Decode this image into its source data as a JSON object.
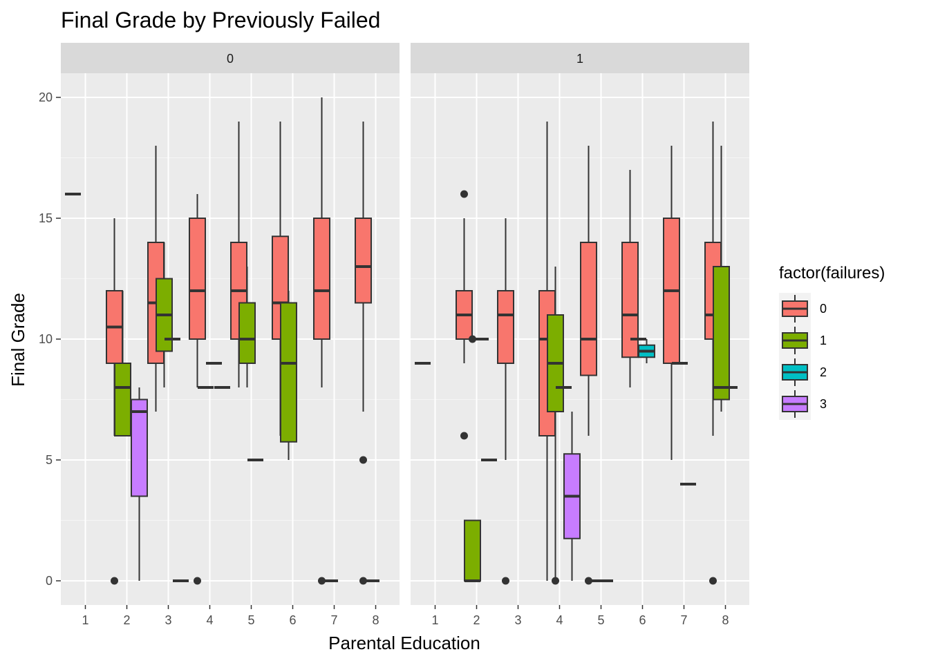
{
  "chart_data": {
    "type": "box",
    "title": "Final Grade by Previously Failed",
    "xlabel": "Parental Education",
    "ylabel": "Final Grade",
    "ylim": [
      -1,
      21
    ],
    "yticks": [
      0,
      5,
      10,
      15,
      20
    ],
    "categories": [
      "1",
      "2",
      "3",
      "4",
      "5",
      "6",
      "7",
      "8"
    ],
    "grid": true,
    "legend": {
      "title": "factor(failures)",
      "position": "right",
      "items": [
        {
          "label": "0",
          "color": "#F8766D"
        },
        {
          "label": "1",
          "color": "#7CAE00"
        },
        {
          "label": "2",
          "color": "#00BFC4"
        },
        {
          "label": "3",
          "color": "#C77CFF"
        }
      ]
    },
    "panels": [
      {
        "label": "0",
        "groups": [
          {
            "x": "1",
            "failures": "0",
            "q1": 16,
            "median": 16,
            "q3": 16,
            "lower": 16,
            "upper": 16,
            "outliers": []
          },
          {
            "x": "2",
            "failures": "0",
            "q1": 9,
            "median": 10.5,
            "q3": 12,
            "lower": 6,
            "upper": 15,
            "outliers": [
              0
            ]
          },
          {
            "x": "2",
            "failures": "1",
            "q1": 6,
            "median": 8,
            "q3": 9,
            "lower": 6,
            "upper": 12,
            "outliers": []
          },
          {
            "x": "2",
            "failures": "3",
            "q1": 3.5,
            "median": 7,
            "q3": 7.5,
            "lower": 0,
            "upper": 8,
            "outliers": []
          },
          {
            "x": "3",
            "failures": "0",
            "q1": 9,
            "median": 11.5,
            "q3": 14,
            "lower": 7,
            "upper": 18,
            "outliers": []
          },
          {
            "x": "3",
            "failures": "1",
            "q1": 9.5,
            "median": 11,
            "q3": 12.5,
            "lower": 8,
            "upper": 14,
            "outliers": []
          },
          {
            "x": "3",
            "failures": "2",
            "q1": 10,
            "median": 10,
            "q3": 10,
            "lower": 10,
            "upper": 10,
            "outliers": []
          },
          {
            "x": "3",
            "failures": "3",
            "q1": 0,
            "median": 0,
            "q3": 0,
            "lower": 0,
            "upper": 0,
            "outliers": []
          },
          {
            "x": "4",
            "failures": "0",
            "q1": 10,
            "median": 12,
            "q3": 15,
            "lower": 8,
            "upper": 16,
            "outliers": [
              0
            ]
          },
          {
            "x": "4",
            "failures": "1",
            "q1": 8,
            "median": 8,
            "q3": 8,
            "lower": 8,
            "upper": 8,
            "outliers": []
          },
          {
            "x": "4",
            "failures": "2",
            "q1": 9,
            "median": 9,
            "q3": 9,
            "lower": 9,
            "upper": 9,
            "outliers": []
          },
          {
            "x": "4",
            "failures": "3",
            "q1": 8,
            "median": 8,
            "q3": 8,
            "lower": 8,
            "upper": 8,
            "outliers": []
          },
          {
            "x": "5",
            "failures": "0",
            "q1": 10,
            "median": 12,
            "q3": 14,
            "lower": 8,
            "upper": 19,
            "outliers": []
          },
          {
            "x": "5",
            "failures": "1",
            "q1": 9,
            "median": 10,
            "q3": 11.5,
            "lower": 8,
            "upper": 13,
            "outliers": []
          },
          {
            "x": "5",
            "failures": "2",
            "q1": 5,
            "median": 5,
            "q3": 5,
            "lower": 5,
            "upper": 5,
            "outliers": []
          },
          {
            "x": "6",
            "failures": "0",
            "q1": 10,
            "median": 11.5,
            "q3": 14.25,
            "lower": 6,
            "upper": 19,
            "outliers": []
          },
          {
            "x": "6",
            "failures": "1",
            "q1": 5.75,
            "median": 9,
            "q3": 11.5,
            "lower": 5,
            "upper": 12,
            "outliers": []
          },
          {
            "x": "7",
            "failures": "0",
            "q1": 10,
            "median": 12,
            "q3": 15,
            "lower": 8,
            "upper": 20,
            "outliers": [
              0
            ]
          },
          {
            "x": "7",
            "failures": "1",
            "q1": 0,
            "median": 0,
            "q3": 0,
            "lower": 0,
            "upper": 0,
            "outliers": []
          },
          {
            "x": "8",
            "failures": "0",
            "q1": 11.5,
            "median": 13,
            "q3": 15,
            "lower": 7,
            "upper": 19,
            "outliers": [
              5,
              0
            ]
          },
          {
            "x": "8",
            "failures": "1",
            "q1": 0,
            "median": 0,
            "q3": 0,
            "lower": 0,
            "upper": 0,
            "outliers": []
          }
        ]
      },
      {
        "label": "1",
        "groups": [
          {
            "x": "1",
            "failures": "0",
            "q1": 9,
            "median": 9,
            "q3": 9,
            "lower": 9,
            "upper": 9,
            "outliers": []
          },
          {
            "x": "2",
            "failures": "0",
            "q1": 10,
            "median": 11,
            "q3": 12,
            "lower": 9,
            "upper": 15,
            "outliers": [
              16,
              6
            ]
          },
          {
            "x": "2",
            "failures": "1",
            "q1": 0,
            "median": 0,
            "q3": 2.5,
            "lower": 0,
            "upper": 2.5,
            "outliers": [
              10
            ]
          },
          {
            "x": "2",
            "failures": "2",
            "q1": 10,
            "median": 10,
            "q3": 10,
            "lower": 10,
            "upper": 10,
            "outliers": []
          },
          {
            "x": "2",
            "failures": "3",
            "q1": 5,
            "median": 5,
            "q3": 5,
            "lower": 5,
            "upper": 5,
            "outliers": []
          },
          {
            "x": "3",
            "failures": "0",
            "q1": 9,
            "median": 11,
            "q3": 12,
            "lower": 5,
            "upper": 15,
            "outliers": [
              0
            ]
          },
          {
            "x": "4",
            "failures": "0",
            "q1": 6,
            "median": 10,
            "q3": 12,
            "lower": 0,
            "upper": 19,
            "outliers": []
          },
          {
            "x": "4",
            "failures": "1",
            "q1": 7,
            "median": 9,
            "q3": 11,
            "lower": 0,
            "upper": 13,
            "outliers": [
              0
            ]
          },
          {
            "x": "4",
            "failures": "2",
            "q1": 8,
            "median": 8,
            "q3": 8,
            "lower": 8,
            "upper": 8,
            "outliers": []
          },
          {
            "x": "4",
            "failures": "3",
            "q1": 1.75,
            "median": 3.5,
            "q3": 5.25,
            "lower": 0,
            "upper": 7,
            "outliers": []
          },
          {
            "x": "5",
            "failures": "0",
            "q1": 8.5,
            "median": 10,
            "q3": 14,
            "lower": 6,
            "upper": 18,
            "outliers": [
              0
            ]
          },
          {
            "x": "5",
            "failures": "1",
            "q1": 0,
            "median": 0,
            "q3": 0,
            "lower": 0,
            "upper": 0,
            "outliers": []
          },
          {
            "x": "5",
            "failures": "2",
            "q1": 0,
            "median": 0,
            "q3": 0,
            "lower": 0,
            "upper": 0,
            "outliers": []
          },
          {
            "x": "6",
            "failures": "0",
            "q1": 9.25,
            "median": 11,
            "q3": 14,
            "lower": 8,
            "upper": 17,
            "outliers": []
          },
          {
            "x": "6",
            "failures": "1",
            "q1": 10,
            "median": 10,
            "q3": 10,
            "lower": 10,
            "upper": 10,
            "outliers": []
          },
          {
            "x": "6",
            "failures": "2",
            "q1": 9.25,
            "median": 9.5,
            "q3": 9.75,
            "lower": 9,
            "upper": 10,
            "outliers": []
          },
          {
            "x": "7",
            "failures": "0",
            "q1": 9,
            "median": 12,
            "q3": 15,
            "lower": 5,
            "upper": 18,
            "outliers": []
          },
          {
            "x": "7",
            "failures": "1",
            "q1": 9,
            "median": 9,
            "q3": 9,
            "lower": 9,
            "upper": 9,
            "outliers": []
          },
          {
            "x": "7",
            "failures": "2",
            "q1": 4,
            "median": 4,
            "q3": 4,
            "lower": 4,
            "upper": 4,
            "outliers": []
          },
          {
            "x": "8",
            "failures": "0",
            "q1": 10,
            "median": 11,
            "q3": 14,
            "lower": 6,
            "upper": 19,
            "outliers": [
              0
            ]
          },
          {
            "x": "8",
            "failures": "1",
            "q1": 7.5,
            "median": 8,
            "q3": 13,
            "lower": 7,
            "upper": 18,
            "outliers": []
          },
          {
            "x": "8",
            "failures": "2",
            "q1": 8,
            "median": 8,
            "q3": 8,
            "lower": 8,
            "upper": 8,
            "outliers": []
          }
        ]
      }
    ]
  }
}
